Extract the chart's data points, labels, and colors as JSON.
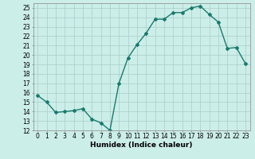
{
  "x": [
    0,
    1,
    2,
    3,
    4,
    5,
    6,
    7,
    8,
    9,
    10,
    11,
    12,
    13,
    14,
    15,
    16,
    17,
    18,
    19,
    20,
    21,
    22,
    23
  ],
  "y": [
    15.7,
    15.0,
    13.9,
    14.0,
    14.1,
    14.3,
    13.2,
    12.8,
    12.0,
    17.0,
    19.7,
    21.1,
    22.3,
    23.8,
    23.8,
    24.5,
    24.5,
    25.0,
    25.2,
    24.3,
    23.5,
    20.7,
    20.8,
    19.1
  ],
  "line_color": "#1a7a6e",
  "marker": "D",
  "marker_size": 2,
  "bg_color": "#cceee8",
  "grid_color": "#aacccc",
  "xlabel": "Humidex (Indice chaleur)",
  "xlim": [
    -0.5,
    23.5
  ],
  "ylim": [
    12,
    25.5
  ],
  "yticks": [
    12,
    13,
    14,
    15,
    16,
    17,
    18,
    19,
    20,
    21,
    22,
    23,
    24,
    25
  ],
  "xticks": [
    0,
    1,
    2,
    3,
    4,
    5,
    6,
    7,
    8,
    9,
    10,
    11,
    12,
    13,
    14,
    15,
    16,
    17,
    18,
    19,
    20,
    21,
    22,
    23
  ],
  "tick_fontsize": 5.5,
  "label_fontsize": 6.5,
  "linewidth": 1.0
}
